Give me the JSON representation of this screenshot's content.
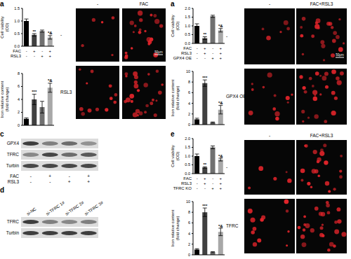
{
  "chart_data": [
    {
      "type": "bar",
      "panel": "a",
      "ylabel": "Cell viability (OD)",
      "categories": [
        null,
        null,
        null,
        null
      ],
      "values": [
        1.0,
        0.45,
        0.6,
        0.35
      ],
      "errors": [
        0.08,
        0.05,
        0.04,
        0.07
      ],
      "annotations": [
        null,
        "**",
        null,
        "*&"
      ],
      "colors": [
        "#000000",
        "#404040",
        "#707070",
        "#a8a8a8"
      ],
      "ylim": [
        0,
        1.5
      ],
      "yticks": [
        {
          "value": 0,
          "label": "0.0"
        },
        {
          "value": 0.5,
          "label": "0.5"
        },
        {
          "value": 1,
          "label": "1.0"
        },
        {
          "value": 1.5,
          "label": "1.5"
        }
      ],
      "treatments": [
        {
          "name": "FAC",
          "values": [
            "-",
            "+",
            "-",
            "+"
          ]
        },
        {
          "name": "RSL3",
          "values": [
            "-",
            "-",
            "+",
            "+"
          ]
        }
      ]
    },
    {
      "type": "bar",
      "ylabel": "Iron relative content (fold change)",
      "categories": [
        null,
        null,
        null,
        null
      ],
      "values": [
        1.0,
        4.0,
        2.8,
        5.8
      ],
      "errors": [
        0.15,
        0.8,
        0.9,
        0.7
      ],
      "annotations": [
        null,
        "***",
        null,
        "*&"
      ],
      "colors": [
        "#000000",
        "#404040",
        "#707070",
        "#a8a8a8"
      ],
      "ylim": [
        0,
        8
      ],
      "yticks": [
        0,
        2,
        4,
        6,
        8
      ]
    },
    {
      "type": "bar",
      "panel": "a",
      "ylabel": "Cell viability (OD)",
      "categories": [
        null,
        null,
        null,
        null
      ],
      "values": [
        1.0,
        0.3,
        1.55,
        0.75
      ],
      "errors": [
        0.12,
        0.08,
        0.06,
        0.1
      ],
      "annotations": [
        null,
        "**",
        null,
        "*&"
      ],
      "colors": [
        "#000000",
        "#404040",
        "#707070",
        "#a8a8a8"
      ],
      "ylim": [
        0,
        2
      ],
      "yticks": [
        {
          "value": 0,
          "label": "0.0"
        },
        {
          "value": 0.5,
          "label": "0.5"
        },
        {
          "value": 1,
          "label": "1.0"
        },
        {
          "value": 1.5,
          "label": "1.5"
        },
        {
          "value": 2,
          "label": "2.0"
        }
      ],
      "treatments": [
        {
          "name": "FAC",
          "values": [
            "-",
            "+",
            "-",
            "+"
          ]
        },
        {
          "name": "RSL3",
          "values": [
            "-",
            "+",
            "-",
            "+"
          ]
        },
        {
          "name": "GPX4 OE",
          "values": [
            "-",
            "-",
            "+",
            "+"
          ]
        }
      ]
    },
    {
      "type": "bar",
      "ylabel": "Iron relative content (fold change)",
      "categories": [
        null,
        null,
        null,
        null
      ],
      "values": [
        1.0,
        7.8,
        0.4,
        2.8
      ],
      "errors": [
        0.2,
        0.6,
        0.1,
        0.8
      ],
      "annotations": [
        null,
        "***",
        null,
        "*&"
      ],
      "colors": [
        "#000000",
        "#404040",
        "#707070",
        "#a8a8a8"
      ],
      "ylim": [
        0,
        10
      ],
      "yticks": [
        0,
        2,
        4,
        6,
        8,
        10
      ]
    },
    {
      "type": "bar",
      "panel": "e",
      "ylabel": "Cell viability (OD)",
      "categories": [
        null,
        null,
        null,
        null
      ],
      "values": [
        1.0,
        0.35,
        1.5,
        0.8
      ],
      "errors": [
        0.12,
        0.04,
        0.08,
        0.08
      ],
      "annotations": [
        null,
        "**",
        null,
        "*&"
      ],
      "colors": [
        "#000000",
        "#404040",
        "#707070",
        "#a8a8a8"
      ],
      "ylim": [
        0,
        2
      ],
      "yticks": [
        {
          "value": 0,
          "label": "0.0"
        },
        {
          "value": 0.5,
          "label": "0.5"
        },
        {
          "value": 1,
          "label": "1.0"
        },
        {
          "value": 1.5,
          "label": "1.5"
        },
        {
          "value": 2,
          "label": "2.0"
        }
      ],
      "treatments": [
        {
          "name": "FAC",
          "values": [
            "-",
            "+",
            "-",
            "+"
          ]
        },
        {
          "name": "RSL3",
          "values": [
            "-",
            "+",
            "-",
            "+"
          ]
        },
        {
          "name": "TFRC KO",
          "values": [
            "-",
            "-",
            "+",
            "+"
          ]
        }
      ]
    },
    {
      "type": "bar",
      "ylabel": "Iron relative content (fold change)",
      "categories": [
        null,
        null,
        null,
        null
      ],
      "values": [
        1.0,
        8.0,
        0.5,
        4.3
      ],
      "errors": [
        0.15,
        0.8,
        0.1,
        0.7
      ],
      "annotations": [
        null,
        "***",
        null,
        "*&"
      ],
      "colors": [
        "#000000",
        "#404040",
        "#707070",
        "#a8a8a8"
      ],
      "ylim": [
        0,
        10
      ],
      "yticks": [
        0,
        2,
        4,
        6,
        8,
        10
      ]
    }
  ],
  "micrographs": [
    {
      "columns": [
        "-",
        "FAC"
      ],
      "rows": [
        "-",
        "RSL3"
      ],
      "scale_bar": "50μm"
    },
    {
      "columns": [
        "-",
        "FAC+RSL3"
      ],
      "rows": [
        "-",
        "GPX4 OE"
      ],
      "scale_bar": "50μm"
    },
    {
      "columns": [
        "-",
        "FAC+RSL3"
      ],
      "rows": [
        "-",
        "TFRC"
      ]
    }
  ],
  "blots": [
    {
      "panel": "c",
      "bands": [
        "GPX4",
        "TFRC",
        "Turbin"
      ],
      "treatments": [
        {
          "name": "FAC",
          "values": [
            "-",
            "+",
            "-",
            "+"
          ]
        },
        {
          "name": "RSL3",
          "values": [
            "-",
            "-",
            "+",
            "+"
          ]
        }
      ]
    },
    {
      "panel": "d",
      "lanes": [
        "si-NC",
        "si-TFRC 1#",
        "si-TFRC 2#",
        "si-TFRC 3#"
      ],
      "bands": [
        "TFRC",
        "Turbin"
      ]
    }
  ]
}
